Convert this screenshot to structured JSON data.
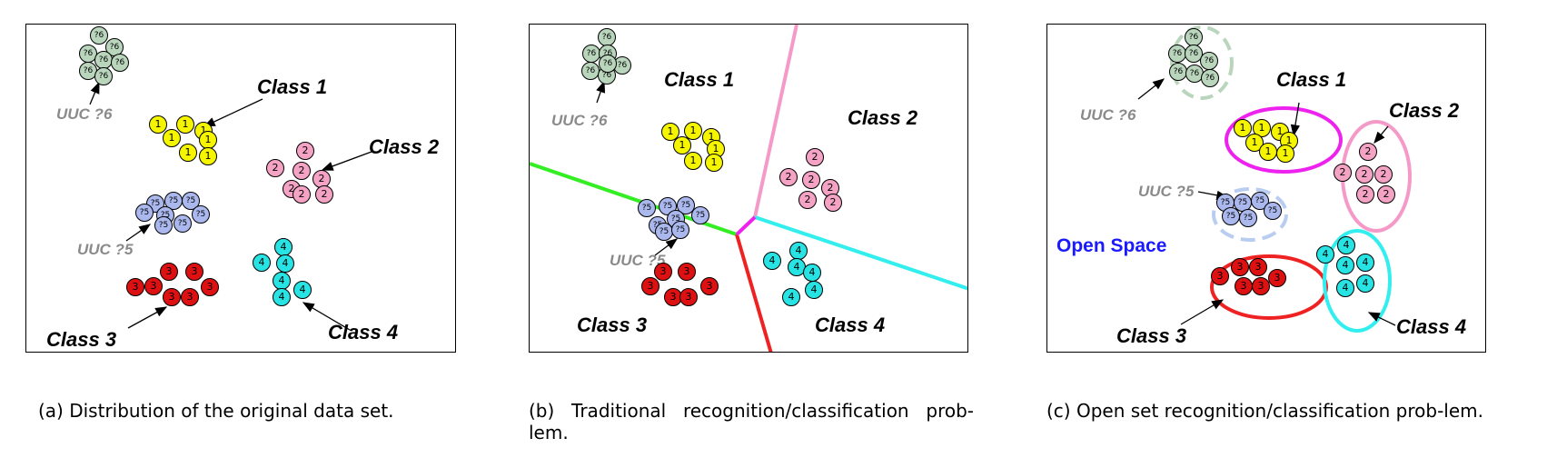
{
  "panels": [
    {
      "caption": "(a) Distribution of the original data set.",
      "class_labels": [
        "Class 1",
        "Class 2",
        "Class 3",
        "Class 4"
      ],
      "uuc_labels": [
        "UUC ?6",
        "UUC ?5"
      ]
    },
    {
      "caption": "(b) Traditional recognition/classification prob-lem.",
      "class_labels": [
        "Class 1",
        "Class 2",
        "Class 3",
        "Class 4"
      ],
      "uuc_labels": [
        "UUC ?6",
        "UUC ?5"
      ]
    },
    {
      "caption": "(c) Open set recognition/classification prob-lem.",
      "class_labels": [
        "Class 1",
        "Class 2",
        "Class 3",
        "Class 4"
      ],
      "uuc_labels": [
        "UUC ?6",
        "UUC ?5"
      ],
      "open_space_label": "Open Space"
    }
  ],
  "groups": [
    {
      "id": "c1",
      "mark": "1",
      "color": "#f5f500"
    },
    {
      "id": "c2",
      "mark": "2",
      "color": "#f4a3c4"
    },
    {
      "id": "c3",
      "mark": "3",
      "color": "#dd1111"
    },
    {
      "id": "c4",
      "mark": "4",
      "color": "#27e3e3"
    },
    {
      "id": "u5",
      "mark": "?5",
      "color": "#aab8ee"
    },
    {
      "id": "u6",
      "mark": "?6",
      "color": "#b9d6bd"
    }
  ],
  "boundary_colors": {
    "class1_class2": "#f59ac8",
    "class1_class3": "#33ee22",
    "class2_class4": "#33eeee",
    "class3_class4": "#ee2222",
    "center": "#ee22ee"
  },
  "ellipse_colors": {
    "class1": "#ee22ee",
    "class2": "#f59ac8",
    "class3": "#ee2222",
    "class4": "#33eeee",
    "uuc": "#b9cdf0",
    "uuc6": "#b9d6bd"
  }
}
